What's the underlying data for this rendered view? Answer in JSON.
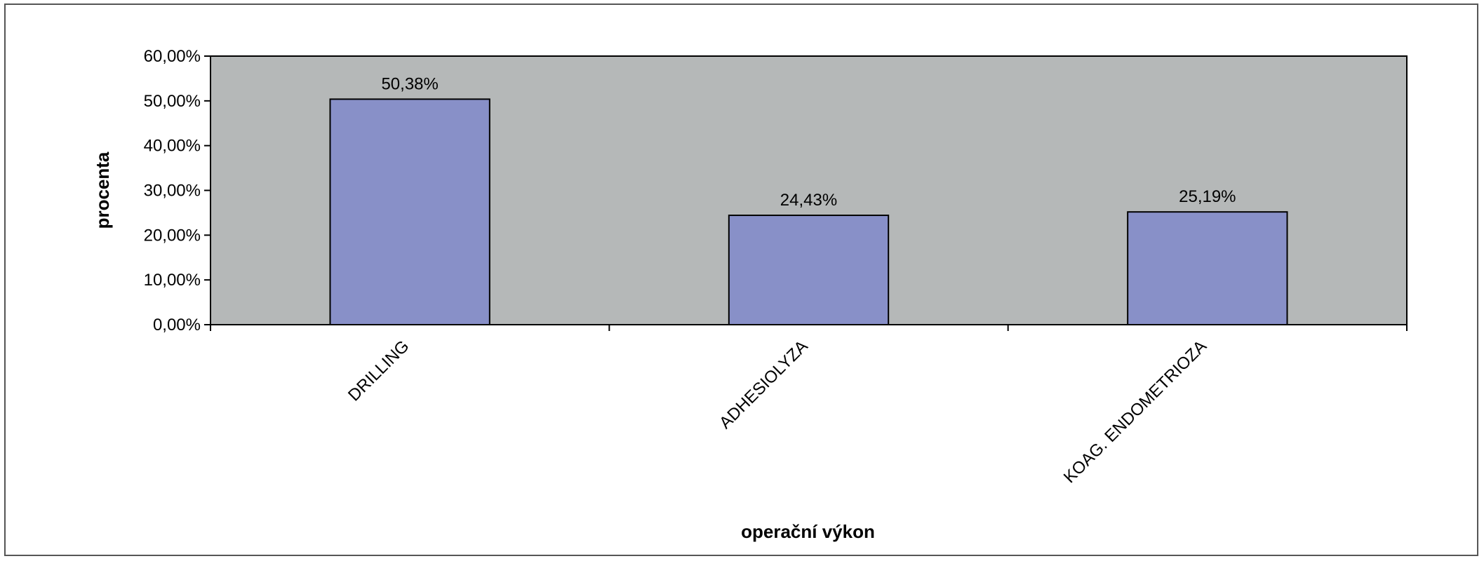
{
  "chart_data": {
    "type": "bar",
    "categories": [
      "DRILLING",
      "ADHESIOLYZA",
      "KOAG. ENDOMETRIOZA"
    ],
    "values": [
      50.38,
      24.43,
      25.19
    ],
    "data_labels": [
      "50,38%",
      "24,43%",
      "25,19%"
    ],
    "xlabel": "operační výkon",
    "ylabel": "procenta",
    "ylim": [
      0,
      60
    ],
    "yticks": [
      0,
      10,
      20,
      30,
      40,
      50,
      60
    ],
    "ytick_labels": [
      "0,00%",
      "10,00%",
      "20,00%",
      "30,00%",
      "40,00%",
      "50,00%",
      "60,00%"
    ],
    "grid": false,
    "legend": "none",
    "colors": {
      "plot_background": "#b5b8b8",
      "bar_fill": "#8890c8",
      "bar_stroke": "#000000",
      "frame": "#555555"
    }
  }
}
